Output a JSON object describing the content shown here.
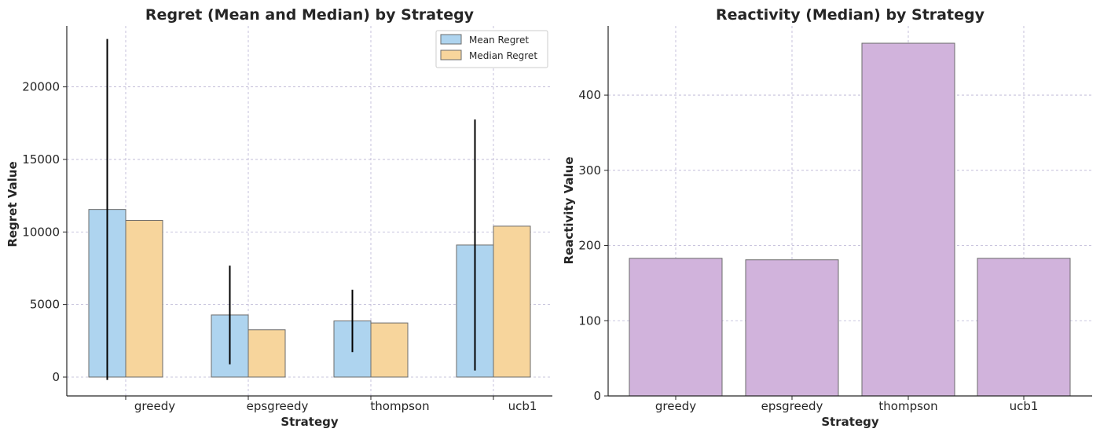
{
  "chart_data": [
    {
      "type": "bar",
      "title": "Regret (Mean and Median) by Strategy",
      "xlabel": "Strategy",
      "ylabel": "Regret Value",
      "categories": [
        "greedy",
        "epsgreedy",
        "thompson",
        "ucb1"
      ],
      "series": [
        {
          "name": "Mean Regret",
          "values": [
            11550,
            4280,
            3870,
            9100
          ],
          "error": [
            11750,
            3400,
            2150,
            8650
          ],
          "color": "#aed4ef"
        },
        {
          "name": "Median Regret",
          "values": [
            10800,
            3260,
            3730,
            10400
          ],
          "color": "#f7d59c"
        }
      ],
      "ylim": [
        -1300,
        24200
      ],
      "yticks": [
        0,
        5000,
        10000,
        15000,
        20000
      ],
      "ytick_labels": [
        "0",
        "5000",
        "10000",
        "15000",
        "20000"
      ],
      "grid": true,
      "legend": "top-right"
    },
    {
      "type": "bar",
      "title": "Reactivity (Median) by Strategy",
      "xlabel": "Strategy",
      "ylabel": "Reactivity Value",
      "categories": [
        "greedy",
        "epsgreedy",
        "thompson",
        "ucb1"
      ],
      "series": [
        {
          "values": [
            183,
            181,
            469,
            183
          ],
          "color": "#d1b3dc"
        }
      ],
      "ylim": [
        0,
        492
      ],
      "yticks": [
        0,
        100,
        200,
        300,
        400
      ],
      "ytick_labels": [
        "0",
        "100",
        "200",
        "300",
        "400"
      ],
      "grid": true
    }
  ]
}
